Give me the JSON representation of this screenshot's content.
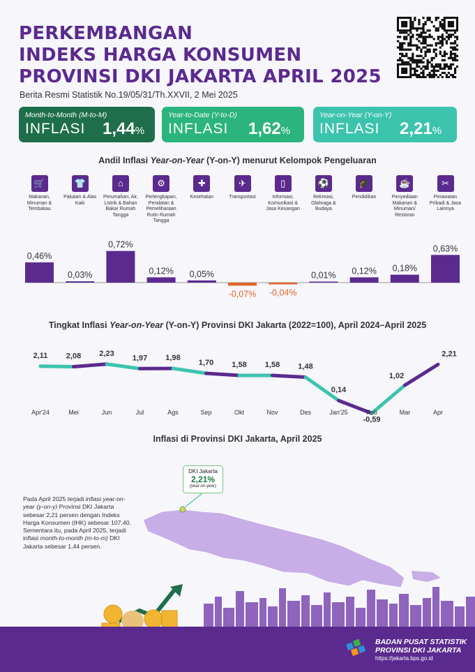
{
  "header": {
    "title_lines": [
      "PERKEMBANGAN",
      "INDEKS HARGA KONSUMEN",
      "PROVINSI DKI JAKARTA APRIL 2025"
    ],
    "subtitle": "Berita Resmi Statistik No.19/05/31/Th.XXVII, 2 Mei 2025"
  },
  "cards": [
    {
      "label": "Month-to-Month (M-to-M)",
      "word": "INFLASI",
      "value": "1,44",
      "unit": "%",
      "color": "#1f6e4b"
    },
    {
      "label": "Year-to-Date (Y-to-D)",
      "word": "INFLASI",
      "value": "1,62",
      "unit": "%",
      "color": "#2bb47d"
    },
    {
      "label": "Year-on-Year (Y-on-Y)",
      "word": "INFLASI",
      "value": "2,21",
      "unit": "%",
      "color": "#3cc3ae"
    }
  ],
  "colors": {
    "purple": "#5b2a8e",
    "negative": "#e0662b",
    "teal": "#3cc3ae",
    "green": "#2bb47d"
  },
  "section1": {
    "title_a": "Andil Inflasi ",
    "title_b": "Year-on-Year",
    "title_c": " (Y-on-Y) menurut Kelompok Pengeluaran"
  },
  "section2": {
    "title_a": "Tingkat Inflasi ",
    "title_b": "Year-on-Year",
    "title_c": " (Y-on-Y) Provinsi DKI Jakarta (2022=100), April 2024–April 2025"
  },
  "section3": {
    "title": "Inflasi di Provinsi DKI Jakarta, April 2025"
  },
  "chart_data": [
    {
      "type": "bar",
      "categories": [
        "Makanan, Minuman & Tembakau",
        "Pakaian & Alas Kaki",
        "Perumahan, Air, Listrik & Bahan Bakar Rumah Tangga",
        "Perlengkapan, Peralatan & Pemeliharaan Rutin Rumah Tangga",
        "Kesehatan",
        "Transportasi",
        "Informasi, Komunikasi & Jasa Keuangan",
        "Rekreasi, Olahraga & Budaya",
        "Pendidikan",
        "Penyediaan Makanan & Minuman/ Restoran",
        "Perawatan Pribadi & Jasa Lainnya"
      ],
      "icons": [
        "food-icon",
        "clothes-icon",
        "house-icon",
        "appliance-icon",
        "health-icon",
        "plane-icon",
        "phone-icon",
        "sport-icon",
        "graduation-icon",
        "restaurant-icon",
        "tools-icon"
      ],
      "values": [
        0.46,
        0.03,
        0.72,
        0.12,
        0.05,
        -0.07,
        -0.04,
        0.01,
        0.12,
        0.18,
        0.63
      ],
      "labels": [
        "0,46%",
        "0,03%",
        "0,72%",
        "0,12%",
        "0,05%",
        "-0,07%",
        "-0,04%",
        "0,01%",
        "0,12%",
        "0,18%",
        "0,63%"
      ]
    },
    {
      "type": "line",
      "x": [
        "Apr'24",
        "Mei",
        "Jun",
        "Jul",
        "Ags",
        "Sep",
        "Okt",
        "Nov",
        "Des",
        "Jan'25",
        "Feb",
        "Mar",
        "Apr"
      ],
      "values": [
        2.11,
        2.08,
        2.23,
        1.97,
        1.98,
        1.7,
        1.58,
        1.58,
        1.48,
        0.14,
        -0.59,
        1.02,
        2.21
      ],
      "labels": [
        "2,11",
        "2,08",
        "2,23",
        "1,97",
        "1,98",
        "1,70",
        "1,58",
        "1,58",
        "1,48",
        "0,14",
        "-0,59",
        "1,02",
        "2,21"
      ]
    }
  ],
  "map": {
    "desc": [
      {
        "t": "Pada April 2025 terjadi inflasi ",
        "i": false
      },
      {
        "t": "year-on-year (y-on-y)",
        "i": true
      },
      {
        "t": " Provinsi DKI Jakarta sebesar 2,21 persen dengan Indeks Harga Konsumen (IHK) sebesar 107,40. Sementara itu, pada April 2025, terjadi inflasi ",
        "i": false
      },
      {
        "t": "month-to-month (m-to-m)",
        "i": true
      },
      {
        "t": " DKI Jakarta sebesar 1,44 persen.",
        "i": false
      }
    ],
    "callout_name": "DKI Jakarta",
    "callout_value": "2,21%",
    "callout_note": "(year-on-year)"
  },
  "footer": {
    "org_line1": "BADAN PUSAT STATISTIK",
    "org_line2": "PROVINSI DKI JAKARTA",
    "url": "https://jakarta.bps.go.id"
  }
}
